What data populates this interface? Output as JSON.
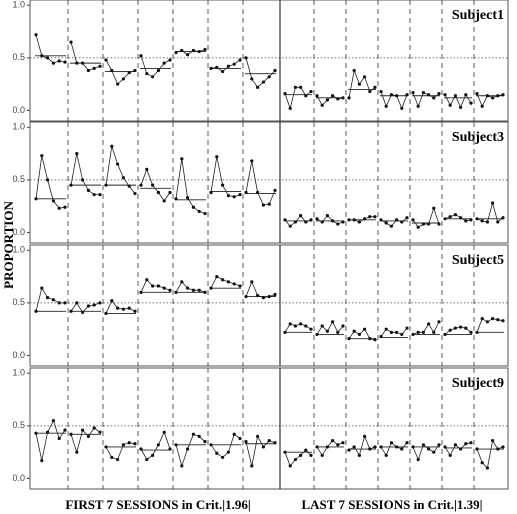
{
  "ylabel": "PROPORTION",
  "group_labels": [
    "FIRST 7 SESSIONS in Crit.|1.96|",
    "LAST 7 SESSIONS in Crit.|1.39|"
  ],
  "chart_data": [
    {
      "type": "line",
      "title": "Subject1",
      "ylim": [
        -0.1,
        1.05
      ],
      "yticks": [
        {
          "value": 0,
          "label": "0.0"
        },
        {
          "value": 0.5,
          "label": "0.5"
        },
        {
          "value": 1,
          "label": "1.0"
        }
      ],
      "reference_line": 0.5,
      "sessions": [
        {
          "values": [
            0.72,
            0.52,
            0.5,
            0.45,
            0.47,
            0.46
          ],
          "mean": 0.52
        },
        {
          "values": [
            0.65,
            0.45,
            0.45,
            0.38,
            0.4,
            0.42
          ],
          "mean": 0.45
        },
        {
          "values": [
            0.48,
            0.38,
            0.25,
            0.3,
            0.36,
            0.38
          ],
          "mean": 0.37
        },
        {
          "values": [
            0.52,
            0.35,
            0.32,
            0.38,
            0.45,
            0.48
          ],
          "mean": 0.4
        },
        {
          "values": [
            0.55,
            0.57,
            0.53,
            0.57,
            0.56,
            0.58
          ],
          "mean": 0.56
        },
        {
          "values": [
            0.4,
            0.41,
            0.37,
            0.42,
            0.44,
            0.48
          ],
          "mean": 0.4
        },
        {
          "values": [
            0.5,
            0.3,
            0.22,
            0.27,
            0.32,
            0.38
          ],
          "mean": 0.35
        },
        {
          "values": [
            0.16,
            0.02,
            0.22,
            0.22,
            0.14,
            0.18
          ],
          "mean": 0.15
        },
        {
          "values": [
            0.14,
            0.05,
            0.1,
            0.14,
            0.11,
            0.12
          ],
          "mean": 0.12
        },
        {
          "values": [
            0.12,
            0.38,
            0.25,
            0.32,
            0.18,
            0.22
          ],
          "mean": 0.2
        },
        {
          "values": [
            0.18,
            0.04,
            0.15,
            0.14,
            0.02,
            0.15
          ],
          "mean": 0.14
        },
        {
          "values": [
            0.17,
            0.04,
            0.17,
            0.15,
            0.12,
            0.16
          ],
          "mean": 0.14
        },
        {
          "values": [
            0.15,
            0.05,
            0.14,
            0.03,
            0.15,
            0.07
          ],
          "mean": 0.12
        },
        {
          "values": [
            0.16,
            0.04,
            0.14,
            0.12,
            0.14,
            0.15
          ],
          "mean": 0.14
        }
      ]
    },
    {
      "type": "line",
      "title": "Subject3",
      "ylim": [
        -0.1,
        1.05
      ],
      "yticks": [
        {
          "value": 0,
          "label": "0.0"
        },
        {
          "value": 0.5,
          "label": "0.5"
        },
        {
          "value": 1,
          "label": "1.0"
        }
      ],
      "reference_line": 0.5,
      "sessions": [
        {
          "values": [
            0.32,
            0.73,
            0.5,
            0.3,
            0.23,
            0.24
          ],
          "mean": 0.32
        },
        {
          "values": [
            0.45,
            0.75,
            0.5,
            0.4,
            0.36,
            0.36
          ],
          "mean": 0.45
        },
        {
          "values": [
            0.45,
            0.82,
            0.65,
            0.52,
            0.44,
            0.37
          ],
          "mean": 0.45
        },
        {
          "values": [
            0.45,
            0.6,
            0.45,
            0.38,
            0.3,
            0.38
          ],
          "mean": 0.42
        },
        {
          "values": [
            0.32,
            0.7,
            0.33,
            0.24,
            0.2,
            0.18
          ],
          "mean": 0.31
        },
        {
          "values": [
            0.38,
            0.72,
            0.45,
            0.35,
            0.34,
            0.36
          ],
          "mean": 0.39
        },
        {
          "values": [
            0.38,
            0.68,
            0.38,
            0.26,
            0.27,
            0.4
          ],
          "mean": 0.37
        },
        {
          "values": [
            0.12,
            0.06,
            0.1,
            0.16,
            0.1,
            0.12
          ],
          "mean": 0.11
        },
        {
          "values": [
            0.13,
            0.1,
            0.16,
            0.11,
            0.08,
            0.1
          ],
          "mean": 0.11
        },
        {
          "values": [
            0.12,
            0.12,
            0.1,
            0.13,
            0.15,
            0.15
          ],
          "mean": 0.12
        },
        {
          "values": [
            0.12,
            0.09,
            0.06,
            0.12,
            0.1,
            0.14
          ],
          "mean": 0.11
        },
        {
          "values": [
            0.12,
            0.05,
            0.08,
            0.08,
            0.23,
            0.08
          ],
          "mean": 0.09
        },
        {
          "values": [
            0.13,
            0.15,
            0.17,
            0.14,
            0.11,
            0.12
          ],
          "mean": 0.13
        },
        {
          "values": [
            0.13,
            0.11,
            0.1,
            0.28,
            0.1,
            0.14
          ],
          "mean": 0.13
        }
      ]
    },
    {
      "type": "line",
      "title": "Subject5",
      "ylim": [
        -0.1,
        1.05
      ],
      "yticks": [
        {
          "value": 0,
          "label": "0.0"
        },
        {
          "value": 0.5,
          "label": "0.5"
        },
        {
          "value": 1,
          "label": "1.0"
        }
      ],
      "reference_line": 0.5,
      "sessions": [
        {
          "values": [
            0.42,
            0.64,
            0.55,
            0.53,
            0.5,
            0.5
          ],
          "mean": 0.42
        },
        {
          "values": [
            0.42,
            0.5,
            0.41,
            0.47,
            0.48,
            0.5
          ],
          "mean": 0.42
        },
        {
          "values": [
            0.4,
            0.52,
            0.45,
            0.44,
            0.45,
            0.42
          ],
          "mean": 0.4
        },
        {
          "values": [
            0.6,
            0.72,
            0.66,
            0.66,
            0.64,
            0.62
          ],
          "mean": 0.6
        },
        {
          "values": [
            0.6,
            0.7,
            0.64,
            0.62,
            0.62,
            0.6
          ],
          "mean": 0.6
        },
        {
          "values": [
            0.64,
            0.75,
            0.72,
            0.7,
            0.68,
            0.66
          ],
          "mean": 0.64
        },
        {
          "values": [
            0.56,
            0.7,
            0.57,
            0.55,
            0.56,
            0.58
          ],
          "mean": 0.56
        },
        {
          "values": [
            0.22,
            0.3,
            0.28,
            0.3,
            0.28,
            0.25
          ],
          "mean": 0.22
        },
        {
          "values": [
            0.2,
            0.28,
            0.23,
            0.32,
            0.22,
            0.28
          ],
          "mean": 0.2
        },
        {
          "values": [
            0.16,
            0.23,
            0.2,
            0.25,
            0.16,
            0.15
          ],
          "mean": 0.16
        },
        {
          "values": [
            0.18,
            0.25,
            0.22,
            0.22,
            0.2,
            0.26
          ],
          "mean": 0.17
        },
        {
          "values": [
            0.2,
            0.22,
            0.22,
            0.3,
            0.22,
            0.32
          ],
          "mean": 0.2
        },
        {
          "values": [
            0.2,
            0.24,
            0.26,
            0.27,
            0.26,
            0.22
          ],
          "mean": 0.2
        },
        {
          "values": [
            0.22,
            0.35,
            0.32,
            0.35,
            0.34,
            0.33
          ],
          "mean": 0.22
        }
      ]
    },
    {
      "type": "line",
      "title": "Subject9",
      "ylim": [
        -0.1,
        1.05
      ],
      "yticks": [
        {
          "value": 0,
          "label": "0.0"
        },
        {
          "value": 0.5,
          "label": "0.5"
        },
        {
          "value": 1,
          "label": "1.0"
        }
      ],
      "reference_line": 0.5,
      "sessions": [
        {
          "values": [
            0.43,
            0.17,
            0.44,
            0.55,
            0.38,
            0.46
          ],
          "mean": 0.43
        },
        {
          "values": [
            0.42,
            0.25,
            0.46,
            0.4,
            0.48,
            0.44
          ],
          "mean": 0.42
        },
        {
          "values": [
            0.3,
            0.2,
            0.18,
            0.32,
            0.34,
            0.33
          ],
          "mean": 0.3
        },
        {
          "values": [
            0.28,
            0.18,
            0.22,
            0.32,
            0.44,
            0.28
          ],
          "mean": 0.27
        },
        {
          "values": [
            0.32,
            0.12,
            0.28,
            0.42,
            0.4,
            0.35
          ],
          "mean": 0.32
        },
        {
          "values": [
            0.32,
            0.24,
            0.2,
            0.25,
            0.42,
            0.38
          ],
          "mean": 0.32
        },
        {
          "values": [
            0.35,
            0.12,
            0.4,
            0.3,
            0.36,
            0.34
          ],
          "mean": 0.33
        },
        {
          "values": [
            0.25,
            0.12,
            0.18,
            0.22,
            0.27,
            0.22
          ],
          "mean": 0.25
        },
        {
          "values": [
            0.3,
            0.22,
            0.3,
            0.36,
            0.32,
            0.34
          ],
          "mean": 0.3
        },
        {
          "values": [
            0.27,
            0.3,
            0.22,
            0.4,
            0.28,
            0.3
          ],
          "mean": 0.28
        },
        {
          "values": [
            0.3,
            0.22,
            0.34,
            0.3,
            0.28,
            0.34
          ],
          "mean": 0.3
        },
        {
          "values": [
            0.3,
            0.18,
            0.32,
            0.28,
            0.25,
            0.32
          ],
          "mean": 0.3
        },
        {
          "values": [
            0.3,
            0.22,
            0.32,
            0.28,
            0.33,
            0.34
          ],
          "mean": 0.29
        },
        {
          "values": [
            0.28,
            0.15,
            0.1,
            0.36,
            0.28,
            0.3
          ],
          "mean": 0.28
        }
      ]
    }
  ]
}
